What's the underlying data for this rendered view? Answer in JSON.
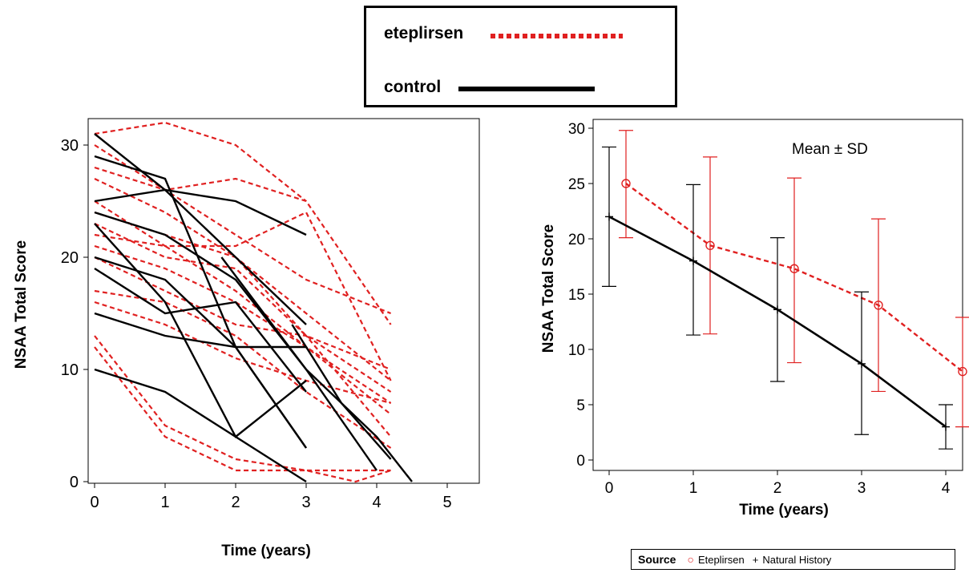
{
  "legend": {
    "eteplirsen_label": "eteplirsen",
    "control_label": "control",
    "eteplirsen_color": "#e02020",
    "control_color": "#000000"
  },
  "chart_data": [
    {
      "type": "line",
      "xlabel": "Time (years)",
      "ylabel": "NSAA Total Score",
      "xlim": [
        0,
        5
      ],
      "ylim": [
        0,
        32
      ],
      "xticks": [
        "0",
        "1",
        "2",
        "3",
        "4",
        "5"
      ],
      "yticks": [
        "0",
        "10",
        "20",
        "30"
      ],
      "series": [
        {
          "group": "eteplirsen",
          "x": [
            0,
            1,
            2,
            3
          ],
          "y": [
            31,
            32,
            30,
            25
          ]
        },
        {
          "group": "eteplirsen",
          "x": [
            0,
            1,
            2,
            3,
            4.2
          ],
          "y": [
            30,
            26,
            27,
            25,
            14
          ]
        },
        {
          "group": "eteplirsen",
          "x": [
            0,
            1,
            2,
            3,
            4.2
          ],
          "y": [
            28,
            26,
            22,
            18,
            15
          ]
        },
        {
          "group": "eteplirsen",
          "x": [
            0,
            1,
            2,
            3,
            4.2
          ],
          "y": [
            27,
            24,
            20,
            15,
            9
          ]
        },
        {
          "group": "eteplirsen",
          "x": [
            0,
            1,
            2,
            3,
            4.2
          ],
          "y": [
            25,
            21,
            21,
            24,
            9
          ]
        },
        {
          "group": "eteplirsen",
          "x": [
            0,
            1,
            2,
            3,
            4.2
          ],
          "y": [
            24,
            22,
            20,
            13,
            10
          ]
        },
        {
          "group": "eteplirsen",
          "x": [
            0,
            1,
            2,
            3,
            4.2
          ],
          "y": [
            23,
            20,
            19,
            13,
            8
          ]
        },
        {
          "group": "eteplirsen",
          "x": [
            0,
            1,
            2,
            3,
            4.2
          ],
          "y": [
            22,
            21,
            17,
            12,
            7
          ]
        },
        {
          "group": "eteplirsen",
          "x": [
            0,
            1,
            2,
            3,
            4.2
          ],
          "y": [
            21,
            19,
            16,
            12,
            6
          ]
        },
        {
          "group": "eteplirsen",
          "x": [
            0,
            1,
            2,
            3,
            4.2
          ],
          "y": [
            20,
            17,
            14,
            13,
            4
          ]
        },
        {
          "group": "eteplirsen",
          "x": [
            0,
            1,
            2,
            3,
            4.2
          ],
          "y": [
            17,
            16,
            13,
            8,
            3
          ]
        },
        {
          "group": "eteplirsen",
          "x": [
            0,
            1,
            2,
            3,
            4.2
          ],
          "y": [
            16,
            14,
            11,
            9,
            7
          ]
        },
        {
          "group": "eteplirsen",
          "x": [
            0,
            1,
            2,
            3,
            4.2
          ],
          "y": [
            13,
            5,
            2,
            1,
            1
          ]
        },
        {
          "group": "eteplirsen",
          "x": [
            0,
            1,
            2,
            3,
            3.7,
            4.2
          ],
          "y": [
            12,
            4,
            1,
            1,
            0,
            1
          ]
        },
        {
          "group": "control",
          "x": [
            0,
            1,
            2,
            3
          ],
          "y": [
            31,
            26,
            20,
            14
          ]
        },
        {
          "group": "control",
          "x": [
            0,
            1,
            2,
            3
          ],
          "y": [
            29,
            27,
            12,
            3
          ]
        },
        {
          "group": "control",
          "x": [
            0,
            1,
            2,
            3
          ],
          "y": [
            25,
            26,
            25,
            22
          ]
        },
        {
          "group": "control",
          "x": [
            0,
            1,
            2,
            3,
            4,
            4.5
          ],
          "y": [
            24,
            22,
            18,
            10,
            4,
            0
          ]
        },
        {
          "group": "control",
          "x": [
            0,
            1,
            2,
            3
          ],
          "y": [
            23,
            16,
            4,
            9
          ]
        },
        {
          "group": "control",
          "x": [
            0,
            1,
            2,
            3
          ],
          "y": [
            20,
            18,
            12,
            3
          ]
        },
        {
          "group": "control",
          "x": [
            0,
            1,
            2,
            3
          ],
          "y": [
            19,
            15,
            16,
            8
          ]
        },
        {
          "group": "control",
          "x": [
            0,
            1,
            2,
            3
          ],
          "y": [
            15,
            13,
            12,
            12
          ]
        },
        {
          "group": "control",
          "x": [
            0,
            1,
            2,
            3
          ],
          "y": [
            10,
            8,
            4,
            0
          ]
        },
        {
          "group": "control",
          "x": [
            1.8,
            3,
            4
          ],
          "y": [
            20,
            10,
            1
          ]
        },
        {
          "group": "control",
          "x": [
            2.8,
            3.5,
            4.2
          ],
          "y": [
            14,
            7,
            2
          ]
        }
      ]
    },
    {
      "type": "line",
      "annotation": "Mean ± SD",
      "xlabel": "Time (years)",
      "ylabel": "NSAA Total Score",
      "xlim": [
        0,
        4
      ],
      "ylim": [
        0,
        30
      ],
      "xticks": [
        "0",
        "1",
        "2",
        "3",
        "4"
      ],
      "yticks": [
        "0",
        "5",
        "10",
        "15",
        "20",
        "25",
        "30"
      ],
      "legend_title": "Source",
      "series": [
        {
          "name": "Eteplirsen",
          "marker": "circle",
          "x": [
            0.2,
            1.2,
            2.2,
            3.2,
            4.2
          ],
          "y": [
            25,
            19.4,
            17.3,
            14,
            8
          ],
          "sd_low": [
            20.1,
            11.4,
            8.8,
            6.2,
            3
          ],
          "sd_high": [
            29.8,
            27.4,
            25.5,
            21.8,
            12.9
          ]
        },
        {
          "name": "Natural History",
          "marker": "plus",
          "x": [
            0,
            1,
            2,
            3,
            4
          ],
          "y": [
            22,
            18,
            13.6,
            8.7,
            3
          ],
          "sd_low": [
            15.7,
            11.3,
            7.1,
            2.3,
            1
          ],
          "sd_high": [
            28.3,
            24.9,
            20.1,
            15.2,
            5
          ]
        }
      ]
    }
  ]
}
